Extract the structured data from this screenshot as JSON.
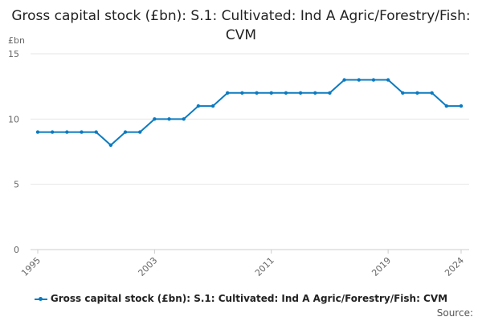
{
  "chart_data": {
    "type": "line",
    "title": "Gross capital stock (£bn): S.1: Cultivated: Ind A Agric/Forestry/Fish: CVM",
    "ylabel": "£bn",
    "xlabel": "",
    "ylim": [
      0,
      15
    ],
    "yticks": [
      0,
      5,
      10,
      15
    ],
    "xticks": [
      1995,
      2003,
      2011,
      2019,
      2024
    ],
    "grid": true,
    "legend_position": "bottom",
    "color": "#0b7bc1",
    "series": [
      {
        "name": "Gross capital stock (£bn): S.1: Cultivated: Ind A Agric/Forestry/Fish: CVM",
        "x": [
          1995,
          1996,
          1997,
          1998,
          1999,
          2000,
          2001,
          2002,
          2003,
          2004,
          2005,
          2006,
          2007,
          2008,
          2009,
          2010,
          2011,
          2012,
          2013,
          2014,
          2015,
          2016,
          2017,
          2018,
          2019,
          2020,
          2021,
          2022,
          2023,
          2024
        ],
        "values": [
          9,
          9,
          9,
          9,
          9,
          8,
          9,
          9,
          10,
          10,
          10,
          11,
          11,
          12,
          12,
          12,
          12,
          12,
          12,
          12,
          12,
          13,
          13,
          13,
          13,
          12,
          12,
          12,
          11,
          11
        ]
      }
    ]
  },
  "source_label": "Source:"
}
